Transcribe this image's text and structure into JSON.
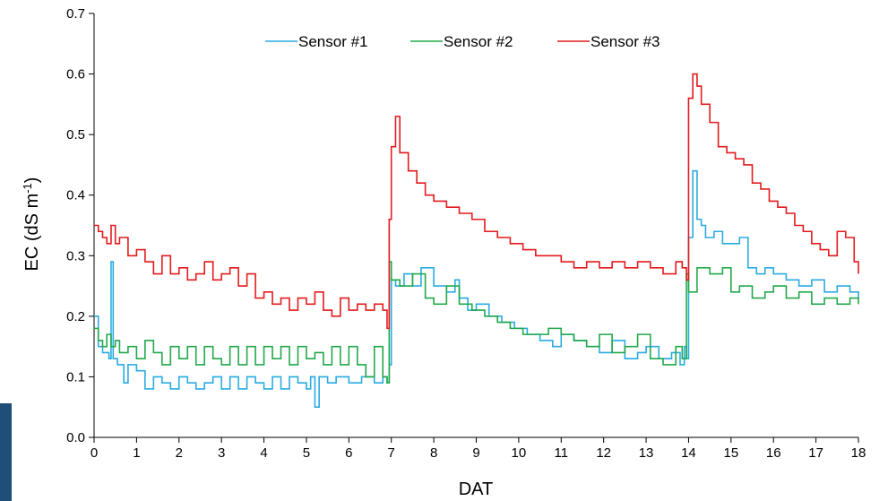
{
  "chart_data": {
    "type": "line",
    "xlabel": "DAT",
    "ylabel": {
      "main": "EC (dS m",
      "sup": "-1",
      "close": ")"
    },
    "xlim": [
      0,
      18
    ],
    "ylim": [
      0.0,
      0.7
    ],
    "x_ticks": [
      0,
      1,
      2,
      3,
      4,
      5,
      6,
      7,
      8,
      9,
      10,
      11,
      12,
      13,
      14,
      15,
      16,
      17,
      18
    ],
    "x_tick_labels": [
      "0",
      "1",
      "2",
      "3",
      "4",
      "5",
      "6",
      "7",
      "8",
      "9",
      "10",
      "11",
      "12",
      "13",
      "14",
      "15",
      "16",
      "17",
      "18"
    ],
    "y_ticks": [
      0.0,
      0.1,
      0.2,
      0.3,
      0.4,
      0.5,
      0.6,
      0.7
    ],
    "y_tick_labels": [
      "0.0",
      "0.1",
      "0.2",
      "0.3",
      "0.4",
      "0.5",
      "0.6",
      "0.7"
    ],
    "grid": false,
    "legend_position": "top-center",
    "series": [
      {
        "name": "Sensor #1",
        "color": "#29abe2",
        "x": [
          0,
          0.1,
          0.2,
          0.35,
          0.4,
          0.45,
          0.55,
          0.7,
          0.8,
          1.0,
          1.2,
          1.4,
          1.6,
          1.8,
          2.0,
          2.2,
          2.4,
          2.6,
          2.8,
          3.0,
          3.2,
          3.4,
          3.6,
          3.8,
          4.0,
          4.2,
          4.4,
          4.6,
          4.8,
          5.0,
          5.1,
          5.2,
          5.3,
          5.5,
          5.7,
          6.0,
          6.3,
          6.6,
          6.8,
          6.9,
          6.95,
          7.0,
          7.1,
          7.3,
          7.5,
          7.7,
          8.0,
          8.3,
          8.5,
          8.6,
          8.8,
          9.0,
          9.3,
          9.6,
          9.9,
          10.2,
          10.5,
          10.8,
          11.0,
          11.3,
          11.6,
          11.9,
          12.2,
          12.5,
          12.8,
          13.0,
          13.3,
          13.6,
          13.8,
          13.9,
          13.95,
          14.0,
          14.1,
          14.2,
          14.3,
          14.4,
          14.6,
          14.8,
          15.0,
          15.2,
          15.4,
          15.6,
          15.8,
          16.0,
          16.3,
          16.6,
          16.9,
          17.2,
          17.5,
          17.8,
          18.0
        ],
        "y": [
          0.2,
          0.15,
          0.14,
          0.13,
          0.29,
          0.13,
          0.12,
          0.09,
          0.12,
          0.11,
          0.08,
          0.1,
          0.09,
          0.08,
          0.1,
          0.09,
          0.08,
          0.09,
          0.1,
          0.08,
          0.1,
          0.08,
          0.1,
          0.09,
          0.08,
          0.1,
          0.08,
          0.1,
          0.09,
          0.08,
          0.1,
          0.05,
          0.1,
          0.09,
          0.1,
          0.09,
          0.1,
          0.09,
          0.1,
          0.09,
          0.12,
          0.26,
          0.25,
          0.27,
          0.25,
          0.28,
          0.25,
          0.24,
          0.26,
          0.23,
          0.21,
          0.22,
          0.2,
          0.19,
          0.18,
          0.17,
          0.16,
          0.15,
          0.17,
          0.16,
          0.15,
          0.14,
          0.16,
          0.13,
          0.14,
          0.15,
          0.13,
          0.14,
          0.12,
          0.15,
          0.13,
          0.33,
          0.44,
          0.36,
          0.35,
          0.33,
          0.34,
          0.32,
          0.32,
          0.33,
          0.28,
          0.27,
          0.28,
          0.27,
          0.26,
          0.25,
          0.26,
          0.24,
          0.25,
          0.24,
          0.23
        ]
      },
      {
        "name": "Sensor #2",
        "color": "#22a84a",
        "x": [
          0,
          0.1,
          0.2,
          0.3,
          0.4,
          0.5,
          0.6,
          0.8,
          1.0,
          1.2,
          1.4,
          1.6,
          1.8,
          2.0,
          2.2,
          2.4,
          2.6,
          2.8,
          3.0,
          3.2,
          3.4,
          3.6,
          3.8,
          4.0,
          4.2,
          4.4,
          4.6,
          4.8,
          5.0,
          5.2,
          5.4,
          5.6,
          5.8,
          6.0,
          6.2,
          6.4,
          6.6,
          6.8,
          6.9,
          6.95,
          7.0,
          7.2,
          7.5,
          7.8,
          8.0,
          8.3,
          8.6,
          8.9,
          9.2,
          9.5,
          9.8,
          10.1,
          10.4,
          10.7,
          11.0,
          11.3,
          11.6,
          11.9,
          12.2,
          12.5,
          12.8,
          13.1,
          13.4,
          13.7,
          13.85,
          13.95,
          14.0,
          14.2,
          14.5,
          14.8,
          15.0,
          15.2,
          15.5,
          15.8,
          16.0,
          16.3,
          16.6,
          16.9,
          17.2,
          17.5,
          17.8,
          18.0
        ],
        "y": [
          0.18,
          0.16,
          0.15,
          0.17,
          0.15,
          0.16,
          0.14,
          0.15,
          0.13,
          0.16,
          0.14,
          0.12,
          0.15,
          0.13,
          0.15,
          0.12,
          0.15,
          0.13,
          0.12,
          0.15,
          0.12,
          0.15,
          0.12,
          0.15,
          0.13,
          0.15,
          0.12,
          0.15,
          0.13,
          0.14,
          0.12,
          0.15,
          0.12,
          0.15,
          0.12,
          0.1,
          0.15,
          0.1,
          0.09,
          0.29,
          0.26,
          0.25,
          0.27,
          0.23,
          0.22,
          0.25,
          0.22,
          0.21,
          0.2,
          0.19,
          0.18,
          0.17,
          0.17,
          0.18,
          0.17,
          0.16,
          0.15,
          0.17,
          0.14,
          0.15,
          0.17,
          0.13,
          0.12,
          0.15,
          0.13,
          0.27,
          0.24,
          0.28,
          0.27,
          0.28,
          0.24,
          0.25,
          0.23,
          0.24,
          0.25,
          0.23,
          0.24,
          0.22,
          0.23,
          0.22,
          0.23,
          0.22
        ]
      },
      {
        "name": "Sensor #3",
        "color": "#e41a1c",
        "x": [
          0,
          0.1,
          0.2,
          0.3,
          0.4,
          0.5,
          0.6,
          0.8,
          1.0,
          1.2,
          1.4,
          1.6,
          1.8,
          2.0,
          2.2,
          2.4,
          2.6,
          2.8,
          3.0,
          3.2,
          3.4,
          3.6,
          3.8,
          4.0,
          4.2,
          4.4,
          4.6,
          4.8,
          5.0,
          5.2,
          5.4,
          5.6,
          5.8,
          6.0,
          6.2,
          6.4,
          6.6,
          6.8,
          6.9,
          6.95,
          7.0,
          7.1,
          7.2,
          7.4,
          7.6,
          7.8,
          8.0,
          8.3,
          8.6,
          8.9,
          9.2,
          9.5,
          9.8,
          10.1,
          10.4,
          10.7,
          11.0,
          11.3,
          11.6,
          11.9,
          12.2,
          12.5,
          12.8,
          13.1,
          13.4,
          13.7,
          13.85,
          13.95,
          14.0,
          14.1,
          14.2,
          14.3,
          14.5,
          14.7,
          14.9,
          15.1,
          15.3,
          15.5,
          15.7,
          15.9,
          16.1,
          16.3,
          16.5,
          16.7,
          16.9,
          17.1,
          17.3,
          17.5,
          17.7,
          17.9,
          18.0
        ],
        "y": [
          0.35,
          0.34,
          0.33,
          0.32,
          0.35,
          0.32,
          0.33,
          0.3,
          0.31,
          0.29,
          0.27,
          0.3,
          0.27,
          0.28,
          0.26,
          0.27,
          0.29,
          0.26,
          0.27,
          0.28,
          0.25,
          0.27,
          0.23,
          0.24,
          0.22,
          0.23,
          0.21,
          0.23,
          0.22,
          0.24,
          0.21,
          0.2,
          0.23,
          0.21,
          0.22,
          0.21,
          0.22,
          0.21,
          0.18,
          0.36,
          0.48,
          0.53,
          0.47,
          0.44,
          0.42,
          0.4,
          0.39,
          0.38,
          0.37,
          0.36,
          0.34,
          0.33,
          0.32,
          0.31,
          0.3,
          0.3,
          0.29,
          0.28,
          0.29,
          0.28,
          0.29,
          0.28,
          0.29,
          0.28,
          0.27,
          0.29,
          0.28,
          0.26,
          0.56,
          0.6,
          0.58,
          0.55,
          0.52,
          0.48,
          0.47,
          0.46,
          0.45,
          0.42,
          0.41,
          0.39,
          0.38,
          0.37,
          0.35,
          0.34,
          0.32,
          0.31,
          0.3,
          0.34,
          0.33,
          0.29,
          0.27
        ]
      }
    ]
  }
}
